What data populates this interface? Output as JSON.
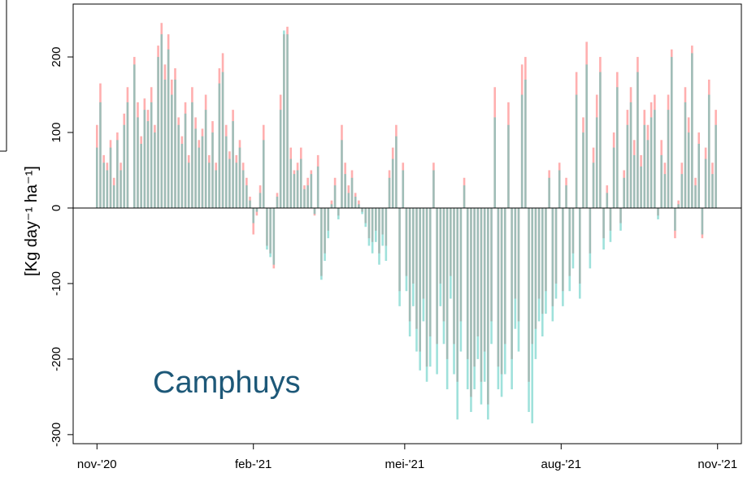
{
  "chart_data": {
    "type": "bar",
    "y_label": "[Kg day⁻¹ ha⁻¹]",
    "annotation": "Camphuys",
    "xlim": [
      -14,
      379
    ],
    "ylim": [
      -312,
      270
    ],
    "xticks": [
      {
        "value": 0,
        "label": "nov-'20"
      },
      {
        "value": 92,
        "label": "feb-'21"
      },
      {
        "value": 181,
        "label": "mei-'21"
      },
      {
        "value": 273,
        "label": "aug-'21"
      },
      {
        "value": 365,
        "label": "nov-'21"
      }
    ],
    "yticks": [
      -300,
      -200,
      -100,
      0,
      100,
      200
    ],
    "x": [
      0,
      2,
      4,
      6,
      8,
      10,
      12,
      14,
      16,
      18,
      20,
      22,
      24,
      26,
      28,
      30,
      32,
      34,
      36,
      38,
      40,
      42,
      44,
      46,
      48,
      50,
      52,
      54,
      56,
      58,
      60,
      62,
      64,
      66,
      68,
      70,
      72,
      74,
      76,
      78,
      80,
      82,
      84,
      86,
      88,
      90,
      92,
      94,
      96,
      98,
      100,
      102,
      104,
      106,
      108,
      110,
      112,
      114,
      116,
      118,
      120,
      122,
      124,
      126,
      128,
      130,
      132,
      134,
      136,
      138,
      140,
      142,
      144,
      146,
      148,
      150,
      152,
      154,
      156,
      158,
      160,
      162,
      164,
      166,
      168,
      170,
      172,
      174,
      176,
      178,
      180,
      182,
      184,
      186,
      188,
      190,
      192,
      194,
      196,
      198,
      200,
      202,
      204,
      206,
      208,
      210,
      212,
      214,
      216,
      218,
      220,
      222,
      224,
      226,
      228,
      230,
      232,
      234,
      236,
      238,
      240,
      242,
      244,
      246,
      248,
      250,
      252,
      254,
      256,
      258,
      260,
      262,
      264,
      266,
      268,
      270,
      272,
      274,
      276,
      278,
      280,
      282,
      284,
      286,
      288,
      290,
      292,
      294,
      296,
      298,
      300,
      302,
      304,
      306,
      308,
      310,
      312,
      314,
      316,
      318,
      320,
      322,
      324,
      326,
      328,
      330,
      332,
      334,
      336,
      338,
      340,
      342,
      344,
      346,
      348,
      350,
      352,
      354,
      356,
      358,
      360,
      362,
      364
    ],
    "series": [
      {
        "color": "rgba(255,110,110,0.55)",
        "values": [
          110,
          165,
          70,
          60,
          90,
          40,
          100,
          60,
          125,
          160,
          0,
          200,
          140,
          95,
          145,
          130,
          160,
          110,
          215,
          245,
          190,
          230,
          170,
          185,
          120,
          95,
          140,
          70,
          160,
          120,
          90,
          105,
          150,
          70,
          115,
          60,
          185,
          205,
          110,
          75,
          130,
          70,
          90,
          60,
          40,
          15,
          -35,
          -10,
          30,
          110,
          -50,
          -60,
          -80,
          20,
          150,
          230,
          240,
          80,
          50,
          60,
          80,
          30,
          40,
          50,
          -10,
          70,
          -90,
          -60,
          -30,
          10,
          40,
          -10,
          110,
          60,
          30,
          50,
          20,
          10,
          -5,
          -20,
          -40,
          -45,
          -30,
          -60,
          -35,
          -50,
          50,
          80,
          110,
          -110,
          60,
          -90,
          -150,
          -100,
          -160,
          -190,
          -120,
          -210,
          -170,
          60,
          -180,
          -100,
          -150,
          -200,
          -90,
          -180,
          -230,
          -150,
          40,
          -200,
          -250,
          -210,
          -170,
          -230,
          -190,
          -260,
          -150,
          160,
          -210,
          -220,
          -180,
          140,
          -200,
          -120,
          -150,
          190,
          200,
          -230,
          -180,
          -160,
          -120,
          -140,
          -110,
          50,
          -130,
          -100,
          60,
          -110,
          40,
          -90,
          -60,
          180,
          -100,
          120,
          220,
          -60,
          80,
          150,
          200,
          -40,
          30,
          -30,
          100,
          180,
          -20,
          50,
          130,
          160,
          90,
          200,
          70,
          130,
          110,
          140,
          150,
          -10,
          90,
          60,
          150,
          210,
          -40,
          10,
          60,
          160,
          120,
          215,
          40,
          100,
          -40,
          80,
          170,
          60,
          130
        ]
      },
      {
        "color": "rgba(80,200,190,0.55)",
        "values": [
          80,
          140,
          60,
          50,
          80,
          30,
          90,
          50,
          110,
          140,
          0,
          190,
          120,
          85,
          130,
          115,
          140,
          100,
          200,
          230,
          170,
          210,
          150,
          170,
          110,
          85,
          125,
          60,
          140,
          105,
          80,
          95,
          130,
          60,
          100,
          50,
          165,
          180,
          95,
          65,
          115,
          60,
          80,
          50,
          30,
          10,
          -20,
          -5,
          20,
          90,
          -55,
          -65,
          -75,
          15,
          130,
          235,
          230,
          65,
          45,
          50,
          65,
          25,
          30,
          45,
          -8,
          55,
          -95,
          -70,
          -40,
          5,
          30,
          -15,
          90,
          45,
          20,
          40,
          15,
          5,
          -8,
          -25,
          -50,
          -60,
          -45,
          -75,
          -50,
          -70,
          40,
          65,
          95,
          -130,
          50,
          -110,
          -170,
          -130,
          -190,
          -215,
          -150,
          -230,
          -210,
          50,
          -220,
          -130,
          -180,
          -240,
          -120,
          -220,
          -280,
          -190,
          30,
          -240,
          -270,
          -240,
          -200,
          -260,
          -230,
          -280,
          -180,
          120,
          -240,
          -250,
          -220,
          110,
          -240,
          -160,
          -190,
          150,
          170,
          -270,
          -285,
          -200,
          -150,
          -170,
          -140,
          40,
          -150,
          -120,
          50,
          -130,
          30,
          -110,
          -80,
          150,
          -120,
          100,
          190,
          -80,
          60,
          120,
          180,
          -55,
          20,
          -45,
          80,
          160,
          -30,
          40,
          110,
          140,
          70,
          180,
          55,
          110,
          90,
          120,
          130,
          -15,
          70,
          45,
          130,
          200,
          -30,
          5,
          45,
          140,
          100,
          205,
          30,
          85,
          -35,
          65,
          150,
          45,
          110
        ]
      }
    ]
  }
}
